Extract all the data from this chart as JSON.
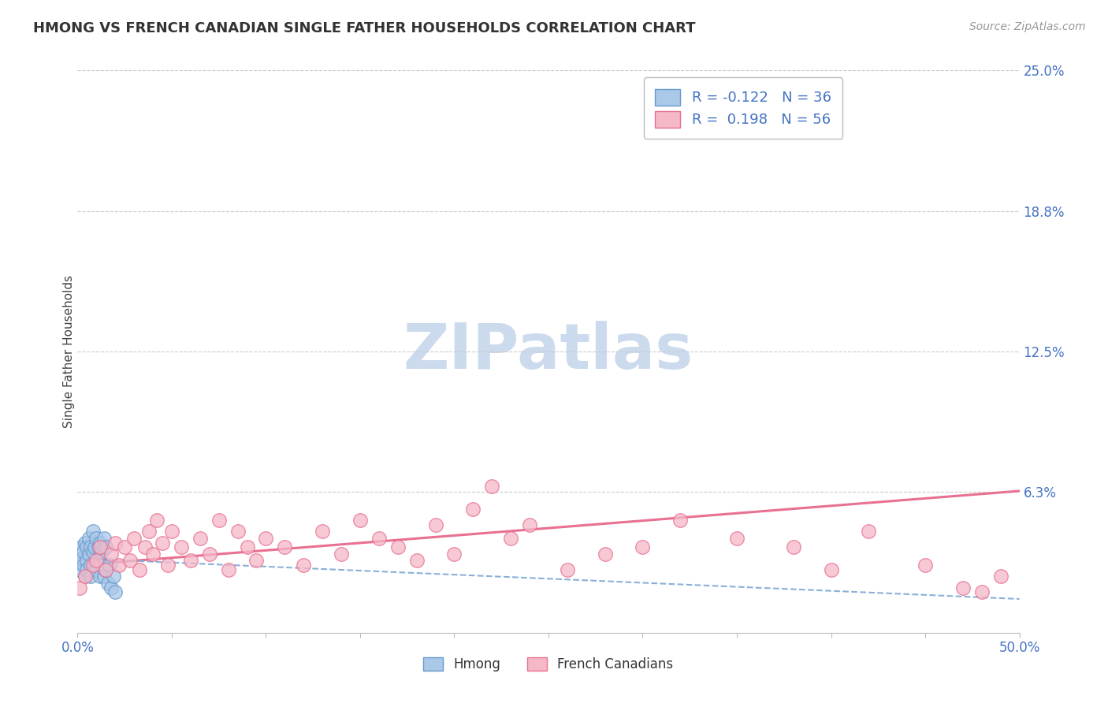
{
  "title": "HMONG VS FRENCH CANADIAN SINGLE FATHER HOUSEHOLDS CORRELATION CHART",
  "source": "Source: ZipAtlas.com",
  "ylabel": "Single Father Households",
  "xlim": [
    0.0,
    0.5
  ],
  "ylim": [
    0.0,
    0.25
  ],
  "yticks": [
    0.0,
    0.0625,
    0.125,
    0.1875,
    0.25
  ],
  "ytick_labels": [
    "",
    "6.3%",
    "12.5%",
    "18.8%",
    "25.0%"
  ],
  "gridline_y": [
    0.0625,
    0.125,
    0.1875,
    0.25
  ],
  "hmong_R": -0.122,
  "hmong_N": 36,
  "fc_R": 0.198,
  "fc_N": 56,
  "hmong_fill": "#aac8e8",
  "hmong_edge": "#6699cc",
  "fc_fill": "#f5b8c8",
  "fc_edge": "#e87090",
  "hmong_trend_color": "#8ab0d8",
  "fc_trend_color": "#e87090",
  "tick_color": "#4472c4",
  "title_color": "#333333",
  "source_color": "#999999",
  "watermark_color": "#ccdaee",
  "hmong_x": [
    0.001,
    0.002,
    0.002,
    0.003,
    0.003,
    0.004,
    0.004,
    0.005,
    0.005,
    0.005,
    0.006,
    0.006,
    0.007,
    0.007,
    0.007,
    0.008,
    0.008,
    0.009,
    0.009,
    0.01,
    0.01,
    0.011,
    0.011,
    0.012,
    0.012,
    0.013,
    0.013,
    0.014,
    0.014,
    0.015,
    0.015,
    0.016,
    0.017,
    0.018,
    0.019,
    0.02
  ],
  "hmong_y": [
    0.028,
    0.033,
    0.038,
    0.03,
    0.036,
    0.025,
    0.04,
    0.032,
    0.038,
    0.028,
    0.035,
    0.042,
    0.03,
    0.038,
    0.025,
    0.036,
    0.045,
    0.03,
    0.038,
    0.028,
    0.042,
    0.032,
    0.038,
    0.025,
    0.04,
    0.03,
    0.036,
    0.025,
    0.042,
    0.028,
    0.038,
    0.022,
    0.03,
    0.02,
    0.025,
    0.018
  ],
  "fc_x": [
    0.001,
    0.004,
    0.008,
    0.01,
    0.012,
    0.015,
    0.018,
    0.02,
    0.022,
    0.025,
    0.028,
    0.03,
    0.033,
    0.036,
    0.038,
    0.04,
    0.042,
    0.045,
    0.048,
    0.05,
    0.055,
    0.06,
    0.065,
    0.07,
    0.075,
    0.08,
    0.085,
    0.09,
    0.095,
    0.1,
    0.11,
    0.12,
    0.13,
    0.14,
    0.15,
    0.16,
    0.17,
    0.18,
    0.19,
    0.2,
    0.21,
    0.22,
    0.23,
    0.24,
    0.26,
    0.28,
    0.3,
    0.32,
    0.35,
    0.38,
    0.4,
    0.42,
    0.45,
    0.47,
    0.48,
    0.49
  ],
  "fc_y": [
    0.02,
    0.025,
    0.03,
    0.032,
    0.038,
    0.028,
    0.035,
    0.04,
    0.03,
    0.038,
    0.032,
    0.042,
    0.028,
    0.038,
    0.045,
    0.035,
    0.05,
    0.04,
    0.03,
    0.045,
    0.038,
    0.032,
    0.042,
    0.035,
    0.05,
    0.028,
    0.045,
    0.038,
    0.032,
    0.042,
    0.038,
    0.03,
    0.045,
    0.035,
    0.05,
    0.042,
    0.038,
    0.032,
    0.048,
    0.035,
    0.055,
    0.065,
    0.042,
    0.048,
    0.028,
    0.035,
    0.038,
    0.05,
    0.042,
    0.038,
    0.028,
    0.045,
    0.03,
    0.02,
    0.018,
    0.025
  ],
  "fc_trend_y_start": 0.03,
  "fc_trend_y_end": 0.063,
  "hmong_trend_y_start": 0.033,
  "hmong_trend_y_end": 0.015
}
